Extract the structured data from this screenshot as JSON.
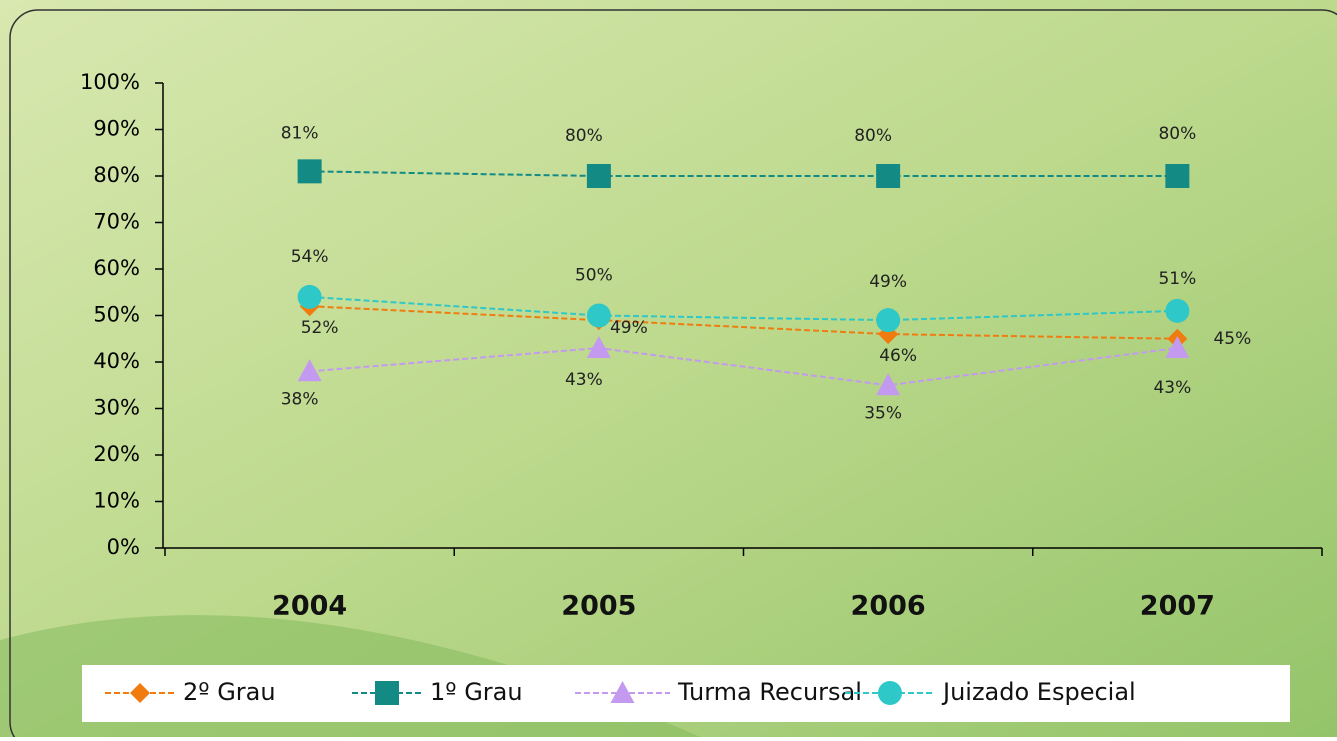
{
  "chart_data": {
    "type": "line",
    "categories": [
      "2004",
      "2005",
      "2006",
      "2007"
    ],
    "series": [
      {
        "name": "2º Grau",
        "color": "#f07c10",
        "marker": "diamond",
        "values": [
          52,
          49,
          46,
          45
        ],
        "value_labels": [
          "52%",
          "49%",
          "46%",
          "45%"
        ]
      },
      {
        "name": "1º Grau",
        "color": "#138a84",
        "marker": "square",
        "values": [
          81,
          80,
          80,
          80
        ],
        "value_labels": [
          "81%",
          "80%",
          "80%",
          "80%"
        ]
      },
      {
        "name": "Turma Recursal",
        "color": "#c39af0",
        "marker": "triangle",
        "values": [
          38,
          43,
          35,
          43
        ],
        "value_labels": [
          "38%",
          "43%",
          "35%",
          "43%"
        ]
      },
      {
        "name": "Juizado Especial",
        "color": "#2ec8c8",
        "marker": "circle",
        "values": [
          54,
          50,
          49,
          51
        ],
        "value_labels": [
          "54%",
          "50%",
          "49%",
          "51%"
        ]
      }
    ],
    "ylim": [
      0,
      100
    ],
    "yticks": [
      {
        "value": 0,
        "label": "0%"
      },
      {
        "value": 10,
        "label": "10%"
      },
      {
        "value": 20,
        "label": "20%"
      },
      {
        "value": 30,
        "label": "30%"
      },
      {
        "value": 40,
        "label": "40%"
      },
      {
        "value": 50,
        "label": "50%"
      },
      {
        "value": 60,
        "label": "60%"
      },
      {
        "value": 70,
        "label": "70%"
      },
      {
        "value": 80,
        "label": "80%"
      },
      {
        "value": 90,
        "label": "90%"
      },
      {
        "value": 100,
        "label": "100%"
      }
    ],
    "legend": "bottom"
  }
}
